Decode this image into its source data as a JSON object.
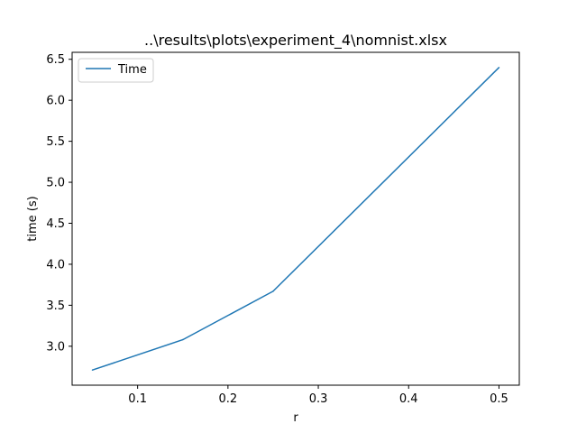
{
  "chart_data": {
    "type": "line",
    "title": "..\\results\\plots\\experiment_4\\nomnist.xlsx",
    "xlabel": "r",
    "ylabel": "time (s)",
    "x": [
      0.05,
      0.15,
      0.25,
      0.5
    ],
    "series": [
      {
        "name": "Time",
        "color": "#1f77b4",
        "values": [
          2.71,
          3.08,
          3.67,
          6.4
        ]
      }
    ],
    "xlim": [
      0.0275,
      0.5225
    ],
    "ylim": [
      2.525,
      6.585
    ],
    "xticks": [
      {
        "value": 0.1,
        "label": "0.1"
      },
      {
        "value": 0.2,
        "label": "0.2"
      },
      {
        "value": 0.3,
        "label": "0.3"
      },
      {
        "value": 0.4,
        "label": "0.4"
      },
      {
        "value": 0.5,
        "label": "0.5"
      }
    ],
    "yticks": [
      {
        "value": 3.0,
        "label": "3.0"
      },
      {
        "value": 3.5,
        "label": "3.5"
      },
      {
        "value": 4.0,
        "label": "4.0"
      },
      {
        "value": 4.5,
        "label": "4.5"
      },
      {
        "value": 5.0,
        "label": "5.0"
      },
      {
        "value": 5.5,
        "label": "5.5"
      },
      {
        "value": 6.0,
        "label": "6.0"
      },
      {
        "value": 6.5,
        "label": "6.5"
      }
    ],
    "grid": false,
    "legend": {
      "position": "top-left",
      "entries": [
        "Time"
      ]
    }
  }
}
